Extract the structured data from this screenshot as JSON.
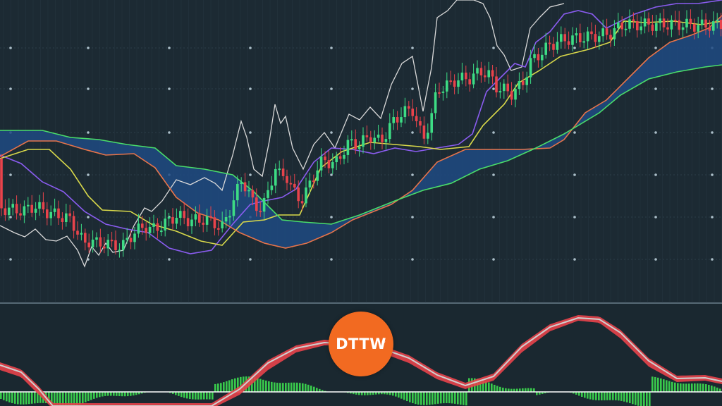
{
  "brand": {
    "logo_text": "DTTW",
    "registered_mark": "®",
    "logo_color": "#f26a21"
  },
  "colors": {
    "background": "#1c2a33",
    "panel_background": "#1a2830",
    "grid": "#3a4f5c",
    "candle_up": "#3ddc84",
    "candle_down": "#e8434b",
    "cloud_fill": "#1f4a82",
    "price_line": "#d9d9d9",
    "tenkan": "#8a5cf0",
    "kijun": "#d9d94a",
    "senkou_a": "#e8744a",
    "senkou_b": "#4ade6a",
    "oscillator_line": "#e8434b",
    "oscillator_signal": "#cfcfcf",
    "histogram": "#3ddc50",
    "zero_line": "#ffffff"
  },
  "chart_data": [
    {
      "type": "candlestick-ichimoku",
      "grid": true,
      "series": [
        {
          "color_key": "price_line",
          "values": [
            [
              0,
              320
            ],
            [
              20,
              330
            ],
            [
              35,
              336
            ],
            [
              50,
              325
            ],
            [
              65,
              340
            ],
            [
              80,
              342
            ],
            [
              95,
              335
            ],
            [
              110,
              355
            ],
            [
              120,
              378
            ],
            [
              130,
              350
            ],
            [
              140,
              362
            ],
            [
              150,
              345
            ],
            [
              160,
              358
            ],
            [
              175,
              355
            ],
            [
              190,
              320
            ],
            [
              205,
              295
            ],
            [
              215,
              300
            ],
            [
              230,
              285
            ],
            [
              250,
              255
            ],
            [
              270,
              262
            ],
            [
              290,
              252
            ],
            [
              305,
              260
            ],
            [
              315,
              270
            ],
            [
              330,
              220
            ],
            [
              342,
              172
            ],
            [
              350,
              195
            ],
            [
              360,
              240
            ],
            [
              372,
              250
            ],
            [
              382,
              200
            ],
            [
              390,
              148
            ],
            [
              398,
              175
            ],
            [
              405,
              165
            ],
            [
              415,
              210
            ],
            [
              430,
              240
            ],
            [
              445,
              205
            ],
            [
              460,
              188
            ],
            [
              475,
              210
            ],
            [
              495,
              162
            ],
            [
              510,
              170
            ],
            [
              525,
              152
            ],
            [
              540,
              168
            ],
            [
              555,
              120
            ],
            [
              570,
              90
            ],
            [
              585,
              80
            ],
            [
              600,
              158
            ],
            [
              612,
              96
            ],
            [
              620,
              25
            ],
            [
              635,
              15
            ],
            [
              648,
              0
            ],
            [
              660,
              0
            ],
            [
              672,
              0
            ],
            [
              685,
              5
            ],
            [
              695,
              25
            ],
            [
              705,
              65
            ],
            [
              715,
              78
            ],
            [
              725,
              100
            ],
            [
              740,
              95
            ],
            [
              752,
              40
            ],
            [
              765,
              25
            ],
            [
              780,
              10
            ],
            [
              800,
              5
            ]
          ]
        },
        {
          "color_key": "tenkan",
          "values": [
            [
              0,
              220
            ],
            [
              30,
              232
            ],
            [
              60,
              258
            ],
            [
              90,
              272
            ],
            [
              120,
              300
            ],
            [
              150,
              318
            ],
            [
              180,
              325
            ],
            [
              210,
              330
            ],
            [
              240,
              352
            ],
            [
              270,
              360
            ],
            [
              300,
              355
            ],
            [
              330,
              318
            ],
            [
              355,
              290
            ],
            [
              375,
              285
            ],
            [
              400,
              280
            ],
            [
              420,
              268
            ],
            [
              445,
              230
            ],
            [
              470,
              210
            ],
            [
              500,
              212
            ],
            [
              530,
              218
            ],
            [
              560,
              210
            ],
            [
              590,
              215
            ],
            [
              620,
              210
            ],
            [
              650,
              205
            ],
            [
              670,
              190
            ],
            [
              690,
              130
            ],
            [
              710,
              110
            ],
            [
              730,
              90
            ],
            [
              745,
              95
            ],
            [
              760,
              60
            ],
            [
              780,
              45
            ],
            [
              800,
              20
            ],
            [
              820,
              15
            ],
            [
              840,
              20
            ],
            [
              860,
              40
            ],
            [
              880,
              30
            ],
            [
              900,
              20
            ],
            [
              930,
              10
            ],
            [
              960,
              5
            ],
            [
              990,
              5
            ],
            [
              1024,
              0
            ]
          ]
        },
        {
          "color_key": "kijun",
          "values": [
            [
              0,
              225
            ],
            [
              40,
              212
            ],
            [
              70,
              212
            ],
            [
              100,
              240
            ],
            [
              125,
              278
            ],
            [
              145,
              298
            ],
            [
              185,
              300
            ],
            [
              215,
              318
            ],
            [
              250,
              328
            ],
            [
              285,
              342
            ],
            [
              315,
              348
            ],
            [
              345,
              315
            ],
            [
              375,
              312
            ],
            [
              395,
              305
            ],
            [
              425,
              305
            ],
            [
              455,
              238
            ],
            [
              485,
              215
            ],
            [
              525,
              202
            ],
            [
              560,
              205
            ],
            [
              595,
              208
            ],
            [
              625,
              212
            ],
            [
              665,
              208
            ],
            [
              685,
              178
            ],
            [
              715,
              148
            ],
            [
              735,
              118
            ],
            [
              765,
              100
            ],
            [
              795,
              80
            ],
            [
              835,
              70
            ],
            [
              865,
              60
            ],
            [
              885,
              30
            ],
            [
              915,
              32
            ],
            [
              955,
              30
            ],
            [
              995,
              35
            ],
            [
              1024,
              30
            ]
          ]
        },
        {
          "color_key": "senkou_a",
          "values": [
            [
              0,
              222
            ],
            [
              40,
              200
            ],
            [
              80,
              200
            ],
            [
              120,
              212
            ],
            [
              150,
              220
            ],
            [
              190,
              218
            ],
            [
              220,
              238
            ],
            [
              250,
              280
            ],
            [
              280,
              302
            ],
            [
              310,
              312
            ],
            [
              340,
              330
            ],
            [
              375,
              345
            ],
            [
              405,
              352
            ],
            [
              435,
              345
            ],
            [
              470,
              330
            ],
            [
              500,
              312
            ],
            [
              530,
              300
            ],
            [
              555,
              290
            ],
            [
              585,
              270
            ],
            [
              620,
              230
            ],
            [
              660,
              212
            ],
            [
              700,
              212
            ],
            [
              740,
              212
            ],
            [
              780,
              210
            ],
            [
              800,
              198
            ],
            [
              830,
              160
            ],
            [
              860,
              142
            ],
            [
              890,
              112
            ],
            [
              920,
              82
            ],
            [
              950,
              60
            ],
            [
              980,
              50
            ],
            [
              1005,
              40
            ],
            [
              1024,
              22
            ]
          ]
        },
        {
          "color_key": "senkou_b",
          "values": [
            [
              0,
              185
            ],
            [
              60,
              185
            ],
            [
              100,
              195
            ],
            [
              140,
              198
            ],
            [
              180,
              205
            ],
            [
              220,
              210
            ],
            [
              250,
              235
            ],
            [
              290,
              240
            ],
            [
              330,
              248
            ],
            [
              360,
              272
            ],
            [
              400,
              312
            ],
            [
              430,
              315
            ],
            [
              470,
              318
            ],
            [
              510,
              305
            ],
            [
              560,
              285
            ],
            [
              600,
              270
            ],
            [
              640,
              260
            ],
            [
              680,
              240
            ],
            [
              720,
              228
            ],
            [
              760,
              210
            ],
            [
              800,
              190
            ],
            [
              850,
              160
            ],
            [
              880,
              135
            ],
            [
              920,
              112
            ],
            [
              960,
              102
            ],
            [
              1000,
              95
            ],
            [
              1024,
              92
            ]
          ]
        }
      ]
    },
    {
      "type": "oscillator",
      "grid": true,
      "series": [
        {
          "color_key": "oscillator_line",
          "values": [
            [
              0,
              525
            ],
            [
              30,
              535
            ],
            [
              55,
              560
            ],
            [
              75,
              580
            ],
            [
              300,
              580
            ],
            [
              340,
              560
            ],
            [
              380,
              525
            ],
            [
              420,
              500
            ],
            [
              460,
              490
            ],
            [
              500,
              490
            ],
            [
              540,
              500
            ],
            [
              580,
              515
            ],
            [
              620,
              538
            ],
            [
              660,
              552
            ],
            [
              700,
              540
            ],
            [
              740,
              500
            ],
            [
              780,
              470
            ],
            [
              820,
              455
            ],
            [
              850,
              458
            ],
            [
              880,
              480
            ],
            [
              920,
              520
            ],
            [
              960,
              542
            ],
            [
              1000,
              540
            ],
            [
              1024,
              545
            ]
          ]
        },
        {
          "color_key": "oscillator_signal",
          "values": [
            [
              0,
              518
            ],
            [
              30,
              528
            ],
            [
              55,
              552
            ],
            [
              75,
              576
            ],
            [
              300,
              576
            ],
            [
              340,
              552
            ],
            [
              380,
              515
            ],
            [
              420,
              494
            ],
            [
              460,
              486
            ],
            [
              500,
              488
            ],
            [
              540,
              494
            ],
            [
              580,
              508
            ],
            [
              620,
              532
            ],
            [
              660,
              547
            ],
            [
              700,
              534
            ],
            [
              740,
              492
            ],
            [
              780,
              464
            ],
            [
              820,
              451
            ],
            [
              850,
              453
            ],
            [
              880,
              472
            ],
            [
              920,
              512
            ],
            [
              960,
              537
            ],
            [
              1000,
              536
            ],
            [
              1024,
              541
            ]
          ]
        }
      ]
    }
  ]
}
